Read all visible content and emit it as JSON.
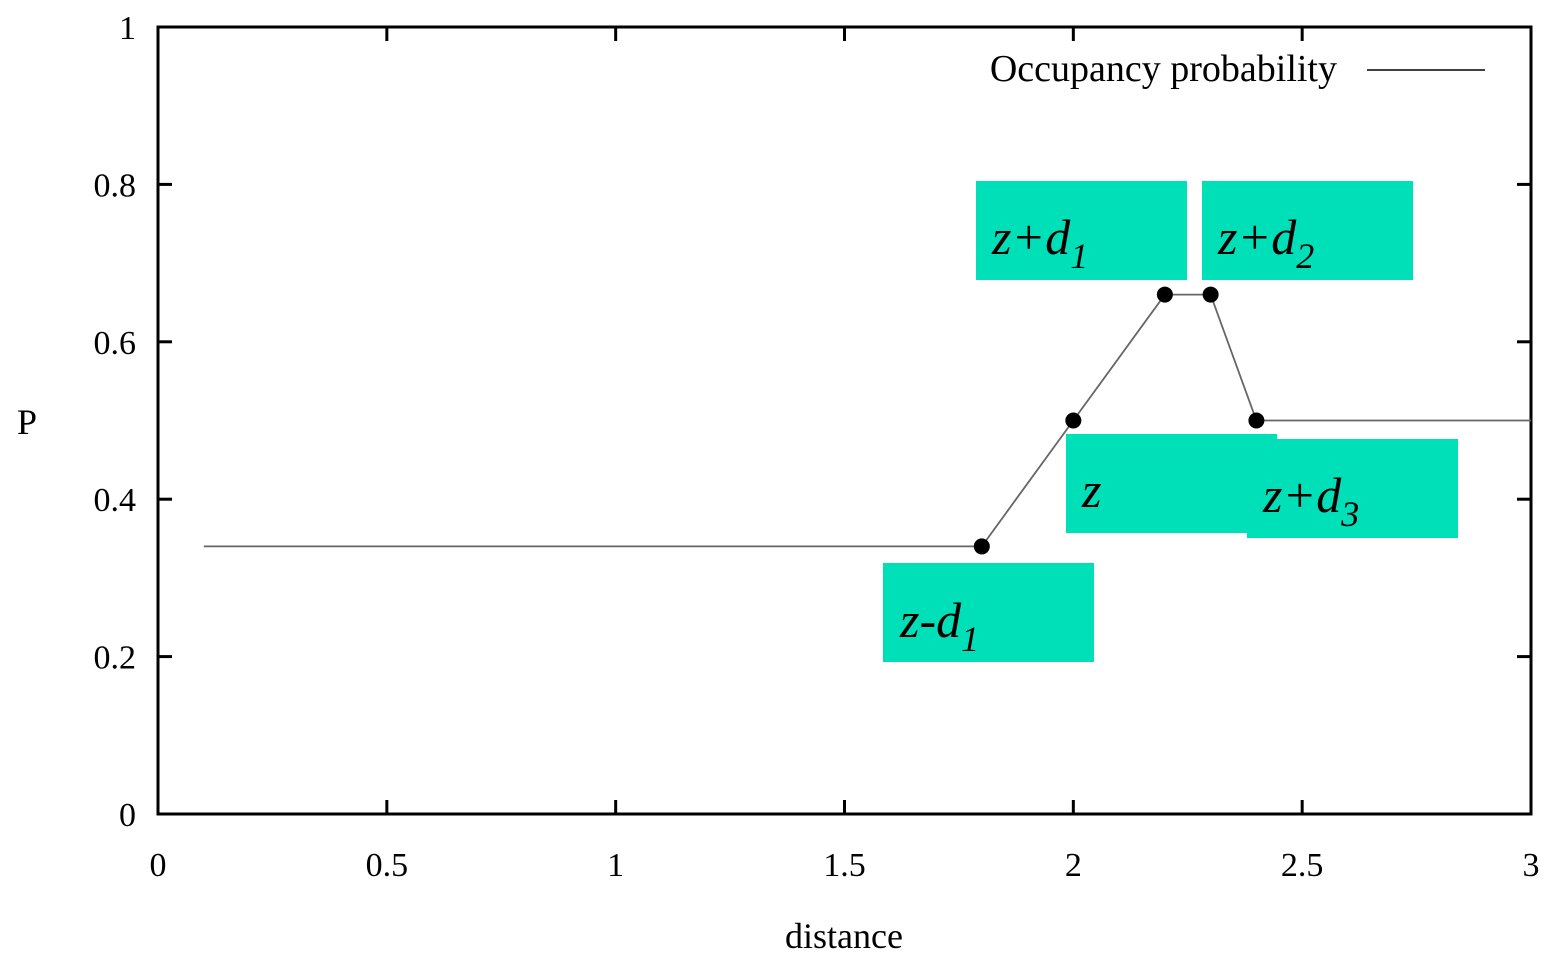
{
  "chart_data": {
    "type": "line",
    "xlabel": "distance",
    "ylabel": "P",
    "xlim": [
      0,
      3
    ],
    "ylim": [
      0,
      1
    ],
    "xticks": [
      {
        "value": 0,
        "label": "0"
      },
      {
        "value": 0.5,
        "label": "0.5"
      },
      {
        "value": 1,
        "label": "1"
      },
      {
        "value": 1.5,
        "label": "1.5"
      },
      {
        "value": 2,
        "label": "2"
      },
      {
        "value": 2.5,
        "label": "2.5"
      },
      {
        "value": 3,
        "label": "3"
      }
    ],
    "yticks": [
      {
        "value": 0,
        "label": "0"
      },
      {
        "value": 0.2,
        "label": "0.2"
      },
      {
        "value": 0.4,
        "label": "0.4"
      },
      {
        "value": 0.6,
        "label": "0.6"
      },
      {
        "value": 0.8,
        "label": "0.8"
      },
      {
        "value": 1,
        "label": "1"
      }
    ],
    "grid": false,
    "legend_position": "top-right",
    "series": [
      {
        "name": "Occupancy probability",
        "color": "#000000",
        "x": [
          0.1,
          1.8,
          2.0,
          2.2,
          2.3,
          2.4,
          3.0
        ],
        "y": [
          0.34,
          0.34,
          0.5,
          0.66,
          0.66,
          0.5,
          0.5
        ]
      }
    ],
    "markers": {
      "x": [
        1.8,
        2.0,
        2.2,
        2.3,
        2.4
      ],
      "y": [
        0.34,
        0.5,
        0.66,
        0.66,
        0.5
      ]
    },
    "annotations": [
      {
        "base": "z-d",
        "sub": "1",
        "x": 1.8
      },
      {
        "base": "z",
        "sub": "",
        "x": 2.0
      },
      {
        "base": "z+d",
        "sub": "1",
        "x": 2.2
      },
      {
        "base": "z+d",
        "sub": "2",
        "x": 2.3
      },
      {
        "base": "z+d",
        "sub": "3",
        "x": 2.4
      }
    ],
    "annotation_color": "#00e0b8"
  }
}
